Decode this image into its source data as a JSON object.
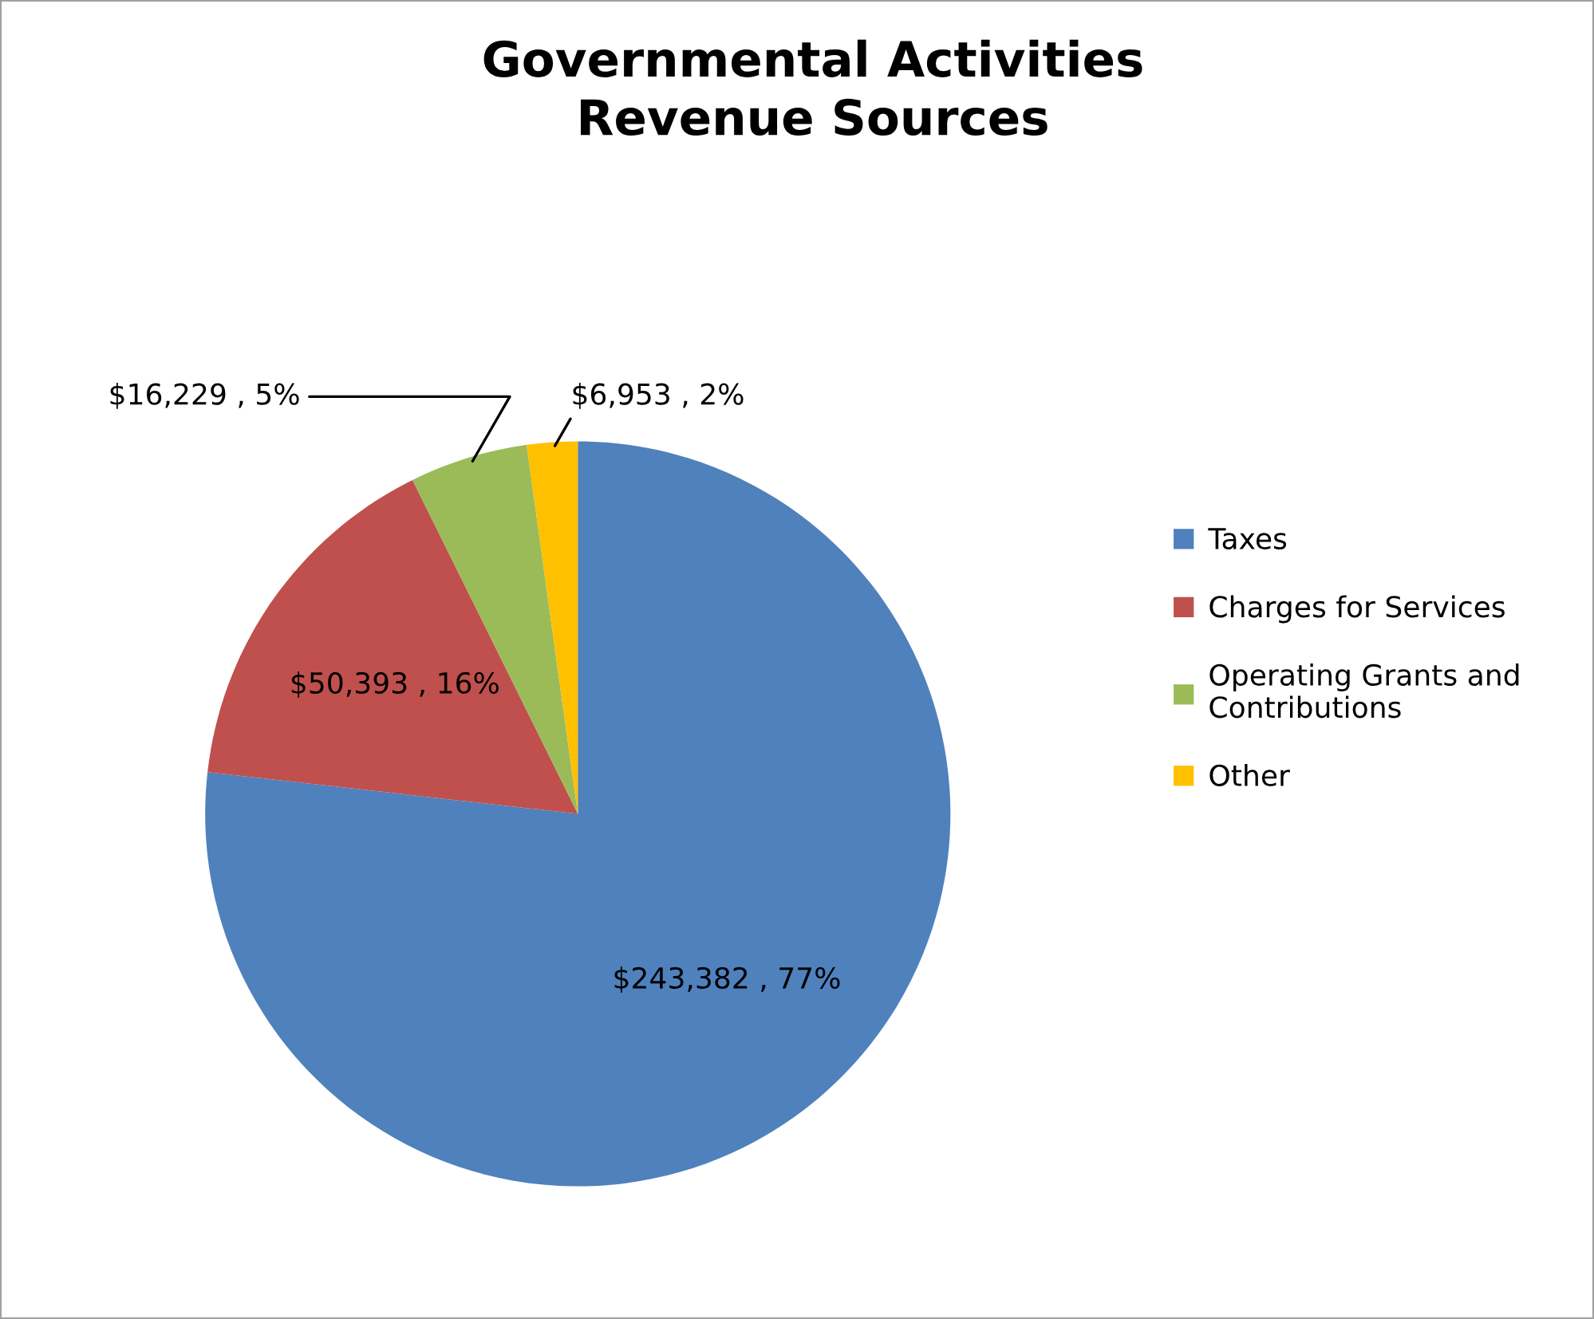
{
  "chart_data": {
    "type": "pie",
    "title": "Governmental Activities\nRevenue Sources",
    "categories": [
      "Taxes",
      "Charges for Services",
      "Operating Grants and Contributions",
      "Other"
    ],
    "values": [
      243382,
      50393,
      16229,
      6953
    ],
    "colors": [
      "#4f81bd",
      "#c0504d",
      "#9bbb59",
      "#ffc000"
    ],
    "value_labels": [
      "$243,382 , 77%",
      "$50,393 , 16%",
      "$16,229 , 5%",
      "$6,953 , 2%"
    ],
    "legend": "right"
  }
}
